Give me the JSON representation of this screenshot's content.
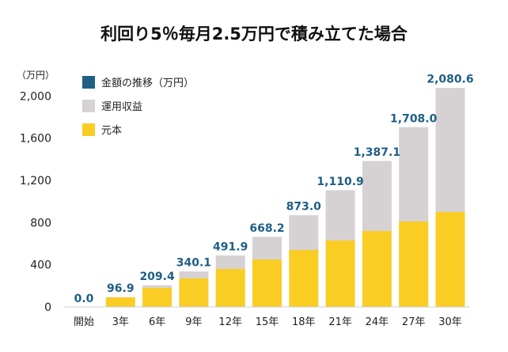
{
  "chart_data": {
    "type": "bar",
    "stacked": true,
    "title": "利回り5％毎月2.5万円で積み立てた場合",
    "unit_label": "（万円）",
    "categories": [
      "開始",
      "3年",
      "6年",
      "9年",
      "12年",
      "15年",
      "18年",
      "21年",
      "24年",
      "27年",
      "30年"
    ],
    "series": [
      {
        "name": "元本",
        "color": "#f9cd24",
        "values": [
          0,
          90,
          180,
          270,
          360,
          450,
          540,
          630,
          720,
          810,
          900
        ]
      },
      {
        "name": "運用収益",
        "color": "#d6d2d3",
        "values": [
          0,
          6.9,
          29.4,
          70.1,
          131.9,
          218.2,
          333.0,
          480.9,
          667.1,
          898.0,
          1180.6
        ]
      }
    ],
    "totals_series_name": "金額の推移（万円）",
    "totals_color": "#1f5f86",
    "data_labels": [
      "0.0",
      "96.9",
      "209.4",
      "340.1",
      "491.9",
      "668.2",
      "873.0",
      "1,110.9",
      "1,387.1",
      "1,708.0",
      "2,080.6"
    ],
    "yticks": [
      0,
      400,
      800,
      1200,
      1600,
      2000
    ],
    "ytick_labels": [
      "0",
      "400",
      "800",
      "1,200",
      "1,600",
      "2,000"
    ],
    "ylim": [
      0,
      2100
    ],
    "legend_position": "top-left",
    "grid": false
  }
}
